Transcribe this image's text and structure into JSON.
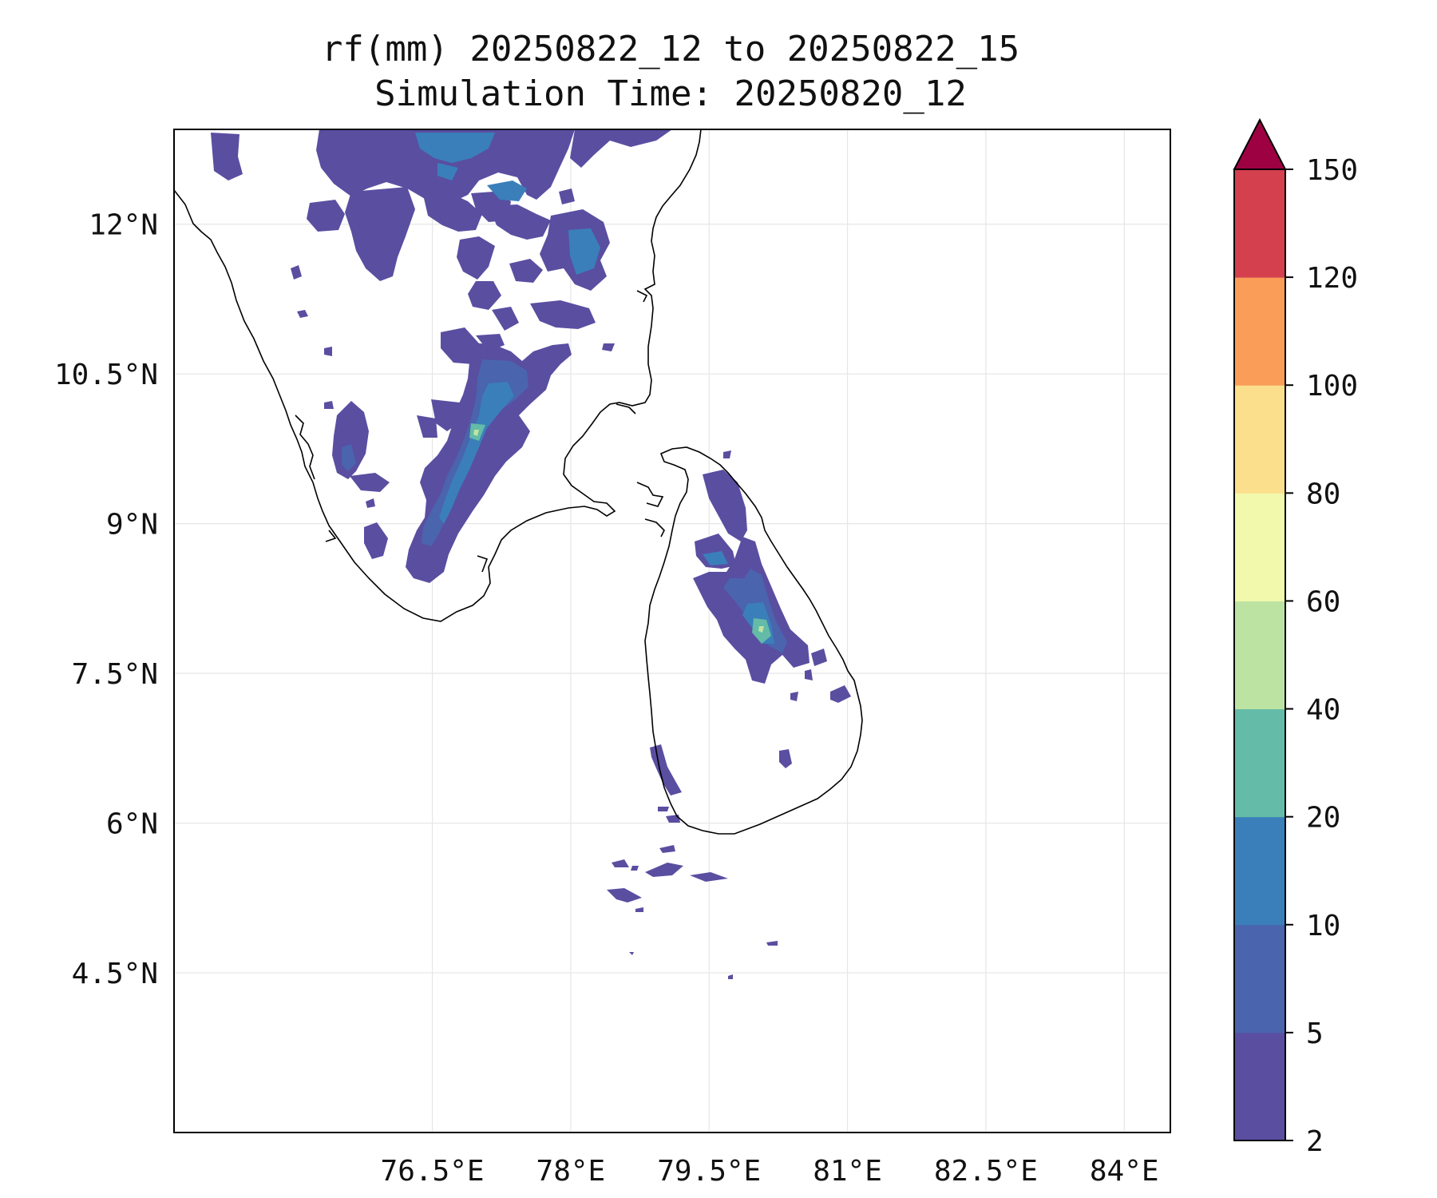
{
  "title": "rf(mm) 20250822_12 to 20250822_15",
  "subtitle": "Simulation Time: 20250820_12",
  "map": {
    "lon_range": [
      73.7,
      84.5
    ],
    "lat_range": [
      2.9,
      12.95
    ],
    "lon_ticks": [
      76.5,
      78,
      79.5,
      81,
      82.5,
      84
    ],
    "lat_ticks": [
      12,
      10.5,
      9,
      7.5,
      6,
      4.5
    ],
    "lon_tick_labels": [
      "76.5°E",
      "78°E",
      "79.5°E",
      "81°E",
      "82.5°E",
      "84°E"
    ],
    "lat_tick_labels": [
      "12°N",
      "10.5°N",
      "9°N",
      "7.5°N",
      "6°N",
      "4.5°N"
    ],
    "grid": true,
    "land_fill": "none",
    "coastline_color": "#000000"
  },
  "colorbar": {
    "levels": [
      2,
      5,
      10,
      20,
      40,
      60,
      80,
      100,
      120,
      150
    ],
    "tick_labels": [
      "2",
      "5",
      "10",
      "20",
      "40",
      "60",
      "80",
      "100",
      "120",
      "150"
    ],
    "colors": [
      "#5a4ea1",
      "#4a64ad",
      "#3a7fba",
      "#63bba8",
      "#bde3a2",
      "#f2f9ac",
      "#fbdf8c",
      "#f99d59",
      "#d4404e"
    ],
    "extend_max_color": "#9e0142",
    "extend": "max"
  }
}
